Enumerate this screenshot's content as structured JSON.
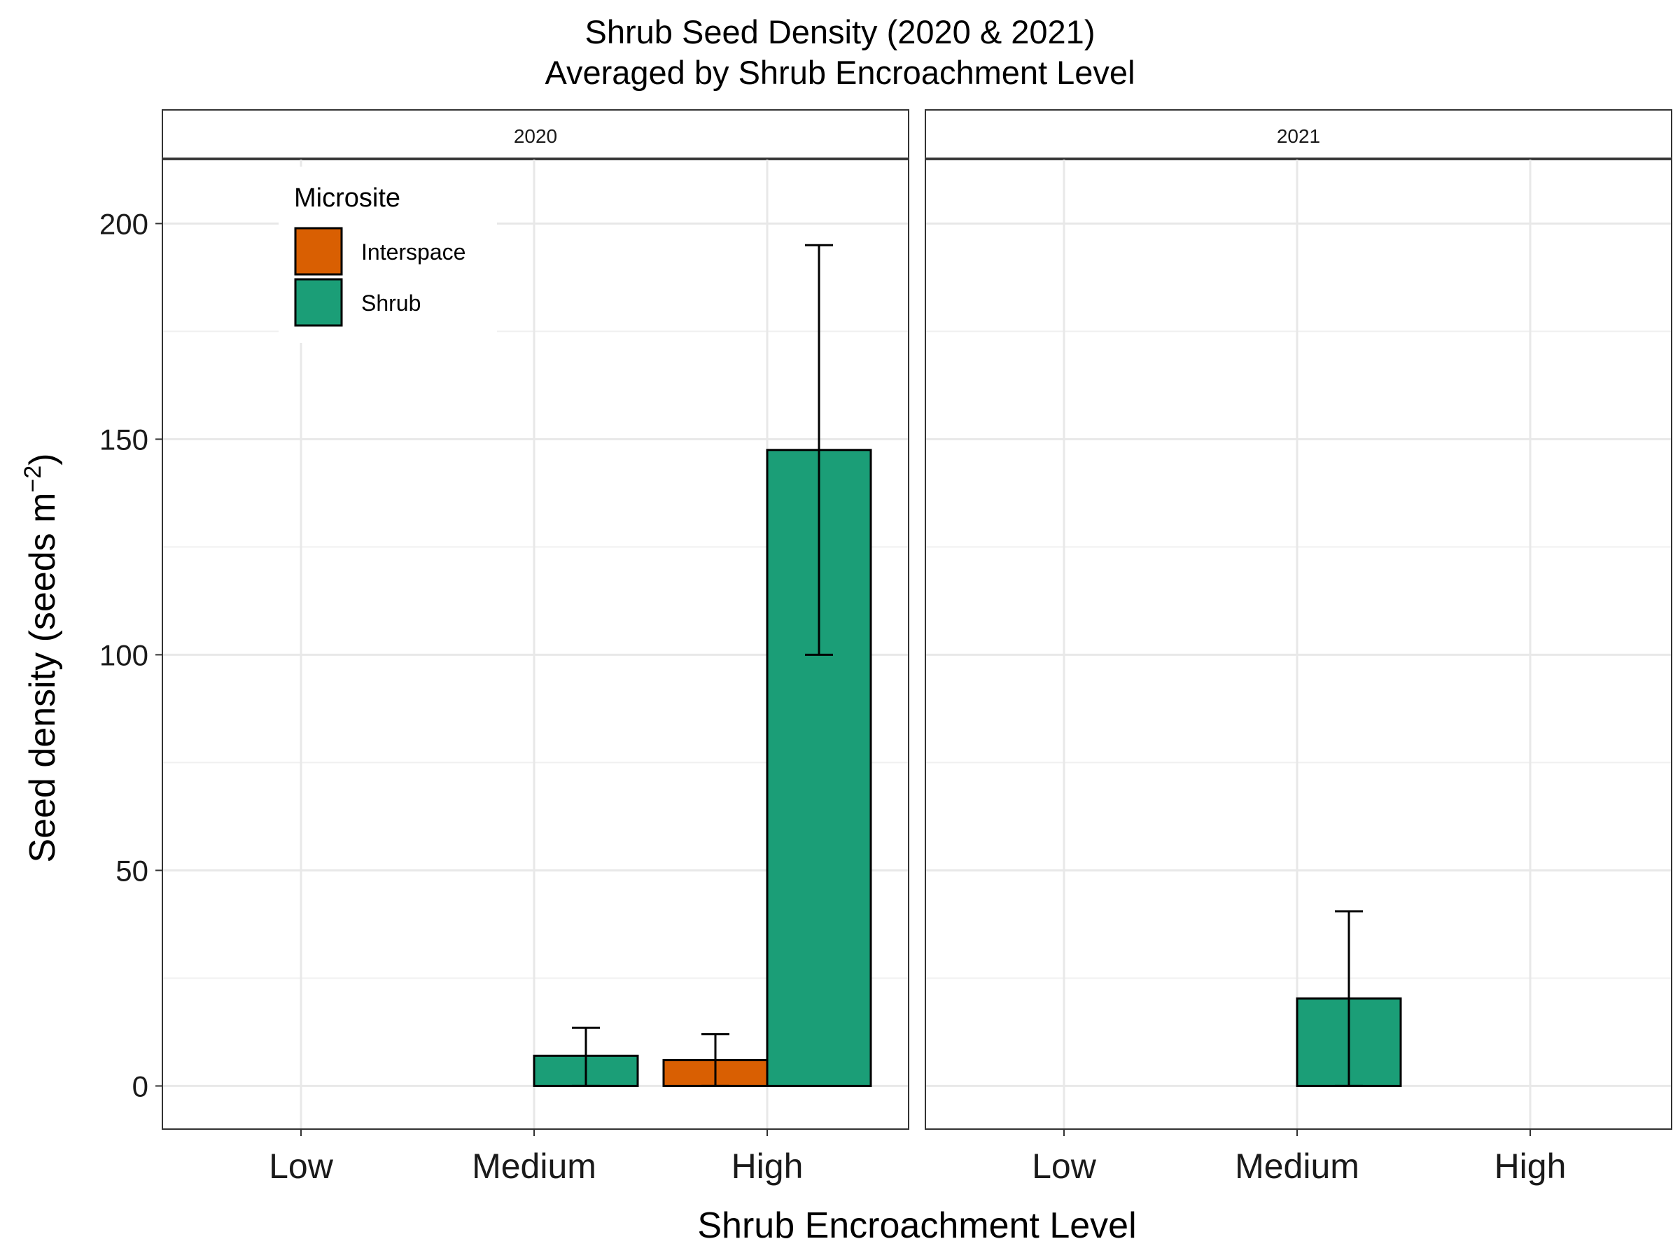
{
  "chart_data": {
    "type": "bar",
    "title": "Shrub Seed Density (2020 & 2021)",
    "subtitle": "Averaged by Shrub Encroachment Level",
    "xlabel": "Shrub Encroachment Level",
    "ylabel": "Seed density (seeds m",
    "ylabel_superscript": "−2",
    "ylabel_suffix": ")",
    "ylim": [
      -10,
      215
    ],
    "yticks": [
      0,
      50,
      100,
      150,
      200
    ],
    "grid": true,
    "categories": [
      "Low",
      "Medium",
      "High"
    ],
    "legend": {
      "title": "Microsite",
      "position": "top-left inside first panel",
      "entries": [
        {
          "label": "Interspace",
          "color": "#D95F02"
        },
        {
          "label": "Shrub",
          "color": "#1B9E77"
        }
      ]
    },
    "facets": [
      {
        "label": "2020",
        "series": [
          {
            "name": "Interspace",
            "color": "#D95F02",
            "values": [
              0,
              0,
              6
            ],
            "error_upper": [
              0,
              0,
              12
            ],
            "error_lower": [
              0,
              0,
              0
            ]
          },
          {
            "name": "Shrub",
            "color": "#1B9E77",
            "values": [
              0,
              7,
              147.5
            ],
            "error_upper": [
              0,
              13.5,
              195
            ],
            "error_lower": [
              0,
              0,
              100
            ]
          }
        ]
      },
      {
        "label": "2021",
        "series": [
          {
            "name": "Interspace",
            "color": "#D95F02",
            "values": [
              0,
              0,
              0
            ],
            "error_upper": [
              0,
              0,
              0
            ],
            "error_lower": [
              0,
              0,
              0
            ]
          },
          {
            "name": "Shrub",
            "color": "#1B9E77",
            "values": [
              0,
              20.3,
              0
            ],
            "error_upper": [
              0,
              40.5,
              0
            ],
            "error_lower": [
              0,
              0,
              0
            ]
          }
        ]
      }
    ]
  }
}
